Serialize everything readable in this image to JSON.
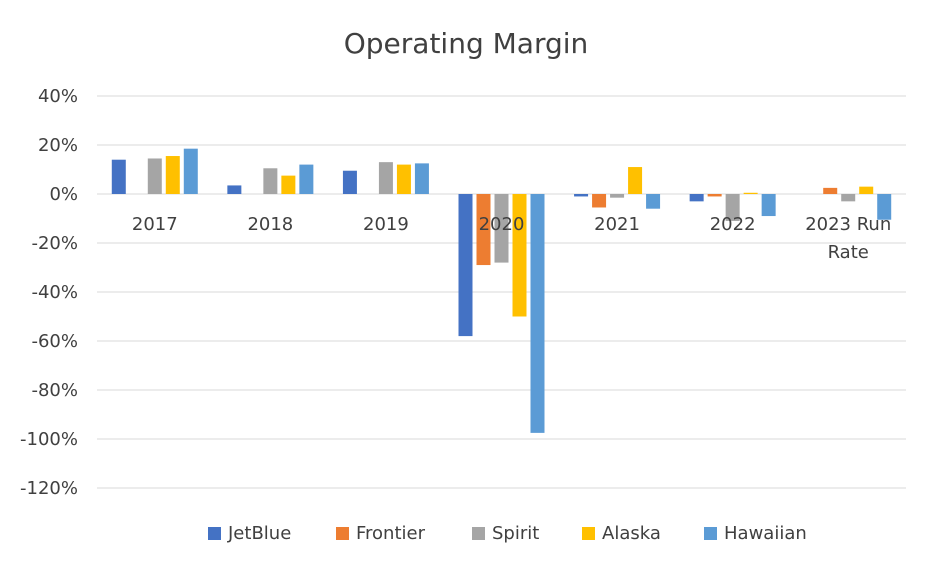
{
  "chart_data": {
    "type": "bar",
    "title": "Operating Margin",
    "categories": [
      "2017",
      "2018",
      "2019",
      "2020",
      "2021",
      "2022",
      "2023 Run Rate"
    ],
    "category_lines": [
      [
        "2017"
      ],
      [
        "2018"
      ],
      [
        "2019"
      ],
      [
        "2020"
      ],
      [
        "2021"
      ],
      [
        "2022"
      ],
      [
        "2023 Run",
        "Rate"
      ]
    ],
    "yticks": [
      "40%",
      "20%",
      "0%",
      "-20%",
      "-40%",
      "-60%",
      "-80%",
      "-100%",
      "-120%"
    ],
    "ylim": [
      -120,
      40
    ],
    "grid": true,
    "legend_position": "bottom",
    "series": [
      {
        "name": "JetBlue",
        "color": "#4472C4",
        "values": [
          14,
          3.5,
          9.5,
          -58,
          -1,
          -3,
          null
        ]
      },
      {
        "name": "Frontier",
        "color": "#ED7D31",
        "values": [
          null,
          null,
          null,
          -29,
          -5.5,
          -1,
          2.5
        ]
      },
      {
        "name": "Spirit",
        "color": "#A5A5A5",
        "values": [
          14.5,
          10.5,
          13,
          -28,
          -1.5,
          -11,
          -3
        ]
      },
      {
        "name": "Alaska",
        "color": "#FFC000",
        "values": [
          15.5,
          7.5,
          12,
          -50,
          11,
          0.5,
          3
        ]
      },
      {
        "name": "Hawaiian",
        "color": "#5B9BD5",
        "values": [
          18.5,
          12,
          12.5,
          -97.5,
          -6,
          -9,
          -10.5
        ]
      }
    ]
  }
}
